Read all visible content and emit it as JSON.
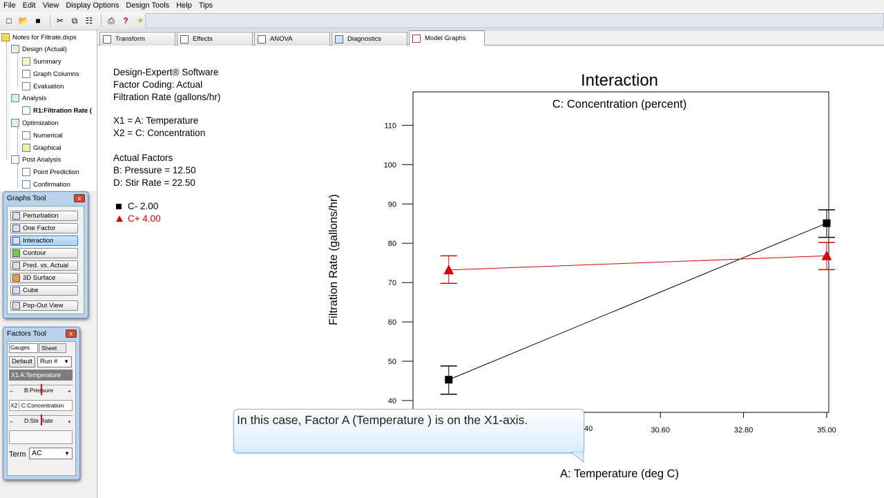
{
  "menu": [
    "File",
    "Edit",
    "View",
    "Display Options",
    "Design Tools",
    "Help",
    "Tips"
  ],
  "tree": {
    "root": "Notes for Filtrate.dxpx",
    "design": "Design (Actual)",
    "summary": "Summary",
    "graph_columns": "Graph Columns",
    "evaluation": "Evaluation",
    "analysis": "Analysis",
    "r1": "R1:Filtration Rate (",
    "optimization": "Optimization",
    "numerical": "Numerical",
    "graphical": "Graphical",
    "post_analysis": "Post Analysis",
    "point_prediction": "Point Prediction",
    "confirmation": "Confirmation"
  },
  "graphs_tool": {
    "title": "Graphs Tool",
    "buttons": [
      "Perturbation",
      "One Factor",
      "Interaction",
      "Contour",
      "Pred. vs. Actual",
      "3D Surface",
      "Cube",
      "Pop-Out View"
    ],
    "active": "Interaction"
  },
  "factors_tool": {
    "title": "Factors Tool",
    "tab_gauges": "Gauges",
    "tab_sheet": "Sheet",
    "default_label": "Default",
    "run_select": "Run #",
    "x1": "X1  A:Temperature",
    "b_label": "B:Pressure",
    "x2_prefix": "X2",
    "x2": "C:Concentration",
    "d_label": "D:Stir Rate",
    "minus": "–",
    "plus": "+",
    "term_label": "Term",
    "term_value": "AC"
  },
  "tabs": [
    "Transform",
    "Effects",
    "ANOVA",
    "Diagnostics",
    "Model Graphs"
  ],
  "active_tab": "Model Graphs",
  "info": {
    "line1": "Design-Expert® Software",
    "line2": "Factor Coding: Actual",
    "line3": "Filtration Rate (gallons/hr)",
    "x1": "X1 = A: Temperature",
    "x2": "X2 = C: Concentration",
    "actual_header": "Actual Factors",
    "b": "B: Pressure = 12.50",
    "d": "D: Stir Rate = 22.50",
    "legend_minus": "C- 2.00",
    "legend_plus": "C+ 4.00"
  },
  "chart_data": {
    "type": "line",
    "title": "Interaction",
    "subtitle": "C: Concentration (percent)",
    "xlabel": "A: Temperature (deg C)",
    "ylabel": "Filtration Rate (gallons/hr)",
    "xlim": [
      24.0,
      35.0
    ],
    "ylim": [
      37.0,
      118.5
    ],
    "xticks": [
      30.6,
      32.8,
      35.0
    ],
    "xtick_labels": [
      "30.60",
      "32.80",
      "35.00"
    ],
    "partial_xtick_label": "40",
    "yticks": [
      40,
      50,
      60,
      70,
      80,
      90,
      100,
      110
    ],
    "series": [
      {
        "name": "C- 2.00",
        "color": "#000000",
        "marker": "square",
        "x": [
          25.0,
          35.0
        ],
        "y": [
          45.3,
          85.1
        ],
        "err_lo": [
          41.6,
          81.5
        ],
        "err_hi": [
          48.8,
          88.5
        ]
      },
      {
        "name": "C+ 4.00",
        "color": "#e00000",
        "marker": "triangle",
        "x": [
          25.0,
          35.0
        ],
        "y": [
          73.2,
          76.8
        ],
        "err_lo": [
          69.8,
          73.3
        ],
        "err_hi": [
          76.8,
          80.2
        ]
      }
    ]
  },
  "callout": {
    "text": "In this case, Factor A (Temperature ) is on the X1-axis."
  },
  "colors": {
    "accent": "#3c7fb1",
    "series_red": "#e00000",
    "callout_border": "#8cb8df"
  }
}
